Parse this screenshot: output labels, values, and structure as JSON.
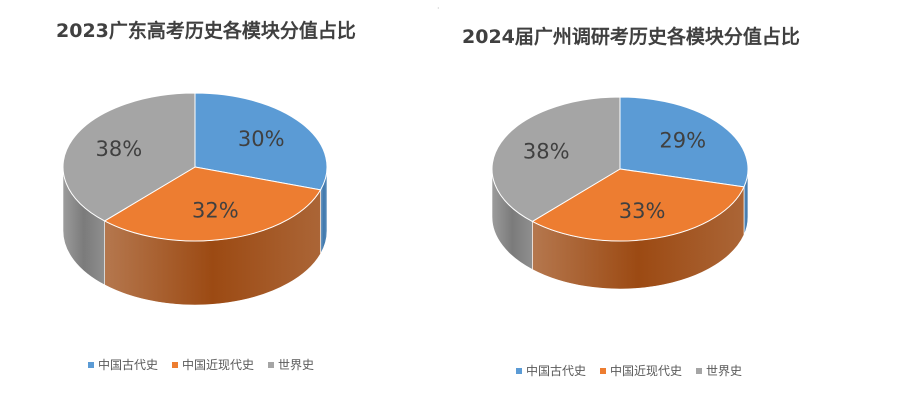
{
  "colors": {
    "series_1": "#5b9bd5",
    "series_2": "#ed7d31",
    "series_3": "#a5a5a5",
    "series_1_side": "#3f78ad",
    "series_2_side": "#9c4a13",
    "series_3_side": "#7b7b7b"
  },
  "chart_data": [
    {
      "type": "pie",
      "style": "3d",
      "title": "2023广东高考历史各模块分值占比",
      "categories": [
        "中国古代史",
        "中国近现代史",
        "世界史"
      ],
      "values": [
        30,
        32,
        38
      ],
      "value_labels": [
        "30%",
        "32%",
        "38%"
      ],
      "legend_position": "bottom"
    },
    {
      "type": "pie",
      "style": "3d",
      "title": "2024届广州调研考历史各模块分值占比",
      "categories": [
        "中国古代史",
        "中国近现代史",
        "世界史"
      ],
      "values": [
        29,
        33,
        38
      ],
      "value_labels": [
        "29%",
        "33%",
        "38%"
      ],
      "legend_position": "bottom"
    }
  ]
}
